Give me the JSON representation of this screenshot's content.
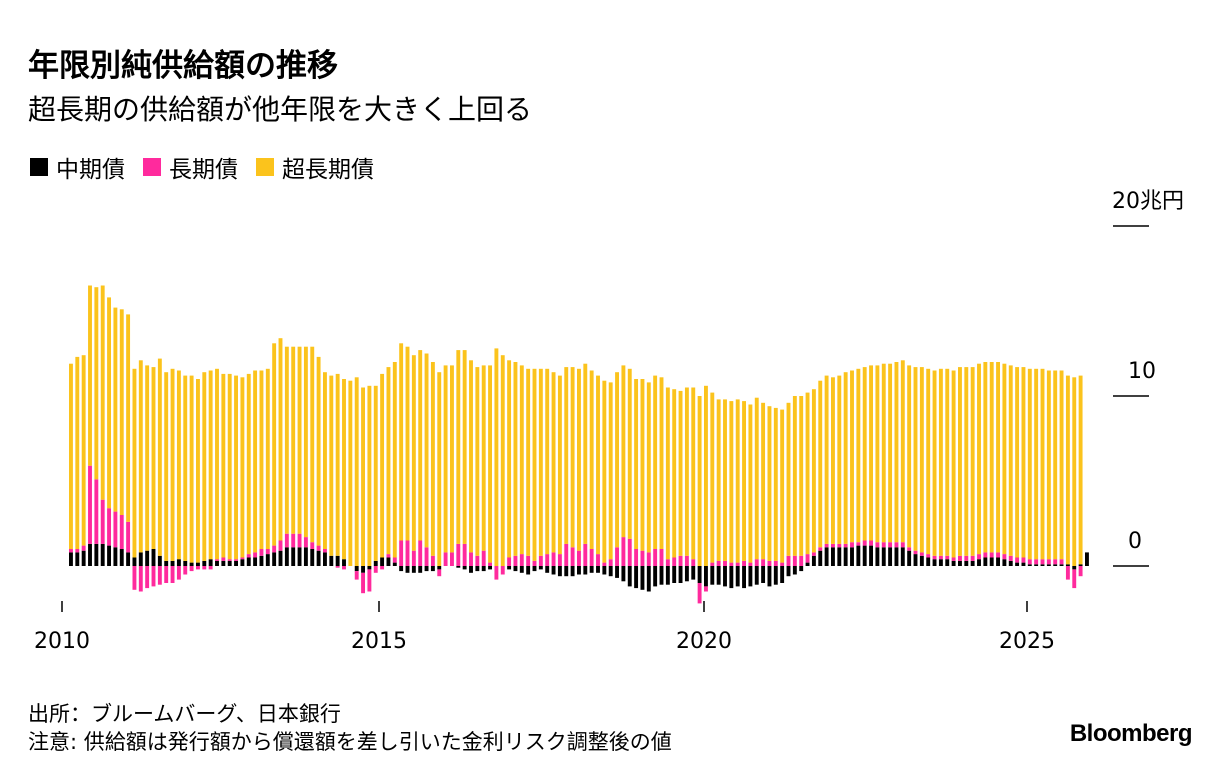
{
  "chart_data": {
    "type": "bar",
    "stacked": true,
    "title": "年限別純供給額の推移",
    "subtitle": "超長期の供給額が他年限を大きく上回る",
    "unit_label": "20兆円",
    "y_ticks": [
      "0",
      "10",
      "20兆円"
    ],
    "ylim": [
      -2.5,
      21
    ],
    "x_ticks": [
      "2010",
      "2015",
      "2020",
      "2025"
    ],
    "x_start": "2010-04",
    "colors": {
      "mid": "#000000",
      "long": "#ff2a9d",
      "super": "#fbc31c"
    },
    "series": [
      {
        "name": "中期債",
        "values": [
          0.8,
          0.8,
          0.9,
          1.3,
          1.3,
          1.3,
          1.2,
          1.1,
          1.0,
          0.8,
          0.5,
          0.8,
          0.9,
          1.0,
          0.6,
          0.3,
          0.3,
          0.4,
          0.3,
          0.2,
          0.2,
          0.3,
          0.4,
          0.3,
          0.3,
          0.3,
          0.3,
          0.4,
          0.5,
          0.5,
          0.6,
          0.7,
          0.8,
          0.9,
          1.1,
          1.1,
          1.1,
          1.1,
          1.0,
          0.9,
          0.8,
          0.6,
          0.6,
          0.4,
          0.0,
          -0.3,
          -0.4,
          -0.2,
          0.3,
          0.5,
          0.5,
          0.2,
          -0.3,
          -0.4,
          -0.4,
          -0.4,
          -0.3,
          -0.3,
          -0.2,
          0.0,
          0.0,
          -0.1,
          -0.2,
          -0.4,
          -0.3,
          -0.3,
          -0.2,
          0.0,
          0.0,
          -0.2,
          -0.3,
          -0.4,
          -0.5,
          -0.3,
          -0.2,
          -0.4,
          -0.5,
          -0.6,
          -0.6,
          -0.6,
          -0.5,
          -0.5,
          -0.4,
          -0.4,
          -0.5,
          -0.6,
          -0.7,
          -0.9,
          -1.2,
          -1.3,
          -1.4,
          -1.5,
          -1.2,
          -1.1,
          -1.1,
          -1.0,
          -1.0,
          -0.9,
          -0.8,
          -1.0,
          -1.2,
          -1.1,
          -1.1,
          -1.2,
          -1.3,
          -1.2,
          -1.3,
          -1.2,
          -1.1,
          -1.0,
          -1.2,
          -1.1,
          -1.0,
          -0.6,
          -0.5,
          -0.3,
          0.2,
          0.6,
          0.9,
          1.1,
          1.1,
          1.1,
          1.1,
          1.1,
          1.2,
          1.2,
          1.2,
          1.1,
          1.1,
          1.1,
          1.1,
          1.1,
          0.9,
          0.7,
          0.6,
          0.5,
          0.4,
          0.4,
          0.4,
          0.3,
          0.3,
          0.3,
          0.3,
          0.4,
          0.5,
          0.5,
          0.5,
          0.4,
          0.3,
          0.2,
          0.2,
          0.1,
          0.1,
          0.1,
          0.1,
          0.1,
          0.1,
          0.1,
          -0.2,
          0.1,
          0.8
        ]
      },
      {
        "name": "長期債",
        "values": [
          0.2,
          0.2,
          0.3,
          4.6,
          3.8,
          2.6,
          2.2,
          2.1,
          2.0,
          1.8,
          -1.4,
          -1.5,
          -1.3,
          -1.2,
          -1.1,
          -1.0,
          -1.0,
          -0.8,
          -0.5,
          -0.3,
          -0.2,
          -0.2,
          -0.2,
          0.1,
          0.2,
          0.1,
          0.1,
          0.1,
          0.2,
          0.3,
          0.4,
          0.3,
          0.4,
          0.6,
          0.8,
          0.8,
          0.8,
          0.6,
          0.4,
          0.3,
          0.2,
          0.0,
          -0.1,
          -0.2,
          0.0,
          -0.5,
          -1.2,
          -1.3,
          -0.4,
          -0.2,
          0.2,
          0.3,
          1.5,
          1.5,
          0.9,
          1.5,
          1.1,
          0.6,
          -0.4,
          0.8,
          0.8,
          1.3,
          1.3,
          0.8,
          0.6,
          0.9,
          0.2,
          -0.8,
          -0.5,
          0.5,
          0.6,
          0.7,
          0.6,
          0.3,
          0.6,
          0.7,
          0.8,
          0.7,
          1.3,
          1.1,
          0.9,
          1.3,
          1.0,
          0.7,
          0.2,
          0.4,
          1.1,
          1.7,
          1.6,
          1.0,
          0.9,
          0.8,
          1.0,
          1.0,
          0.4,
          0.5,
          0.6,
          0.6,
          0.4,
          -1.2,
          -0.3,
          0.2,
          0.3,
          0.3,
          0.2,
          0.2,
          0.3,
          0.2,
          0.4,
          0.4,
          0.3,
          0.3,
          0.2,
          0.6,
          0.6,
          0.6,
          0.5,
          0.2,
          0.2,
          0.2,
          0.2,
          0.2,
          0.2,
          0.3,
          0.2,
          0.3,
          0.3,
          0.3,
          0.3,
          0.3,
          0.3,
          0.3,
          0.2,
          0.2,
          0.2,
          0.2,
          0.2,
          0.2,
          0.2,
          0.2,
          0.3,
          0.3,
          0.3,
          0.3,
          0.3,
          0.3,
          0.3,
          0.3,
          0.3,
          0.3,
          0.3,
          0.3,
          0.3,
          0.3,
          0.3,
          0.3,
          0.3,
          -0.8,
          -1.1,
          -0.6
        ]
      },
      {
        "name": "超長期債",
        "values": [
          10.9,
          11.3,
          11.2,
          10.6,
          11.3,
          12.6,
          12.4,
          12.0,
          12.1,
          12.2,
          11.1,
          11.3,
          10.9,
          10.7,
          11.6,
          11.1,
          11.3,
          11.1,
          10.9,
          11.0,
          10.8,
          11.1,
          11.1,
          11.2,
          10.8,
          10.9,
          10.8,
          10.6,
          10.6,
          10.7,
          10.5,
          10.6,
          11.9,
          11.9,
          11.0,
          11.0,
          11.0,
          11.2,
          11.5,
          11.1,
          10.4,
          10.6,
          10.7,
          10.6,
          10.9,
          11.1,
          10.5,
          10.6,
          10.3,
          10.8,
          11.0,
          11.5,
          11.6,
          11.4,
          11.5,
          11.2,
          11.4,
          11.4,
          11.4,
          11.0,
          11.0,
          11.4,
          11.4,
          11.3,
          11.1,
          10.9,
          11.6,
          12.8,
          12.4,
          11.6,
          11.4,
          11.1,
          11.0,
          11.3,
          11.0,
          10.9,
          10.6,
          10.5,
          10.4,
          10.6,
          10.7,
          10.6,
          10.5,
          10.5,
          10.7,
          10.4,
          10.3,
          10.1,
          10.0,
          10.0,
          10.1,
          10.0,
          10.2,
          10.1,
          10.1,
          9.9,
          9.7,
          9.9,
          10.1,
          10.0,
          10.6,
          10.0,
          9.5,
          9.5,
          9.5,
          9.6,
          9.4,
          9.3,
          9.5,
          9.2,
          9.1,
          9.0,
          9.0,
          9.0,
          9.4,
          9.4,
          9.5,
          9.6,
          9.8,
          9.9,
          9.8,
          9.9,
          10.1,
          10.1,
          10.2,
          10.2,
          10.3,
          10.4,
          10.5,
          10.5,
          10.6,
          10.7,
          10.7,
          10.8,
          10.9,
          10.9,
          10.9,
          11.0,
          11.0,
          11.0,
          11.1,
          11.1,
          11.1,
          11.2,
          11.2,
          11.2,
          11.2,
          11.2,
          11.2,
          11.2,
          11.2,
          11.2,
          11.2,
          11.2,
          11.1,
          11.1,
          11.1,
          11.1,
          11.1,
          11.1
        ]
      }
    ]
  },
  "legend": [
    {
      "label": "中期債",
      "color": "#000000"
    },
    {
      "label": "長期債",
      "color": "#ff2a9d"
    },
    {
      "label": "超長期債",
      "color": "#fbc31c"
    }
  ],
  "notes": {
    "source": "出所：ブルームバーグ、日本銀行",
    "note": "注意: 供給額は発行額から償還額を差し引いた金利リスク調整後の値"
  },
  "brand": "Bloomberg"
}
